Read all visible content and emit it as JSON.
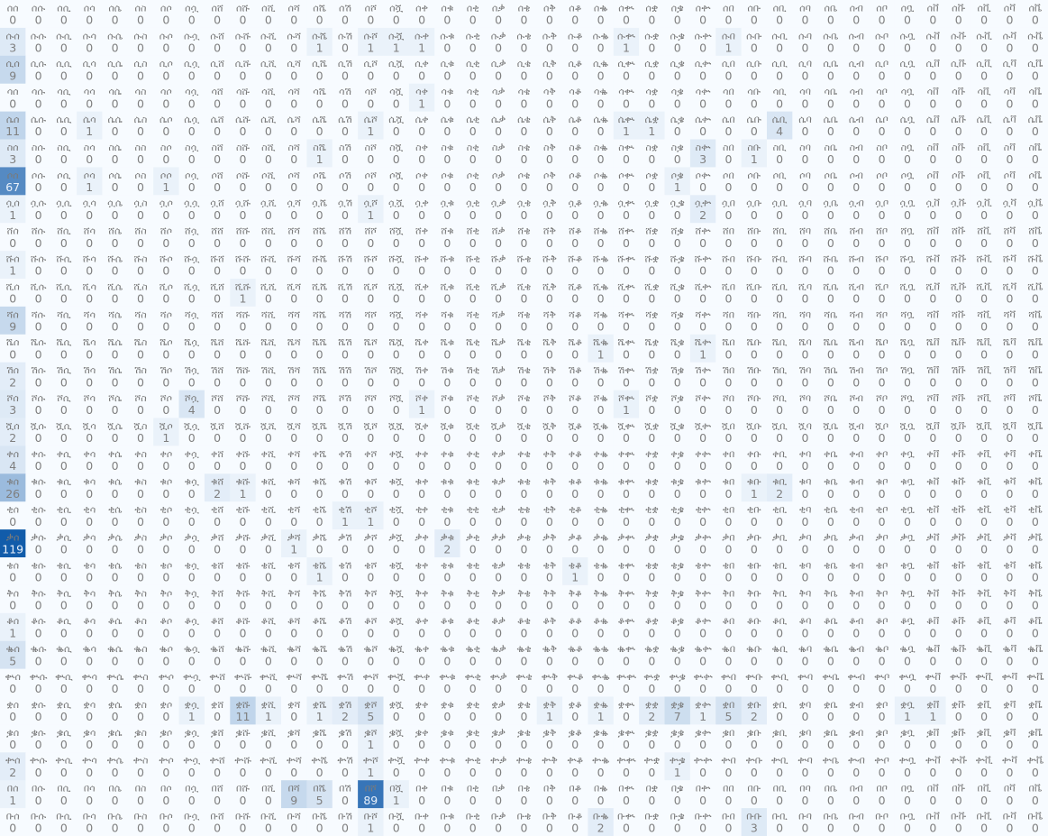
{
  "chart_data": {
    "type": "heatmap",
    "title": "",
    "xlabel": "",
    "ylabel": "",
    "colormap": "Blues",
    "value_range": [
      0,
      119
    ],
    "columns": [
      "ሰ",
      "ሱ",
      "ሲ",
      "ሳ",
      "ሴ",
      "ስ",
      "ሶ",
      "ሷ",
      "ሸ",
      "ሹ",
      "ሺ",
      "ሻ",
      "ሼ",
      "ሽ",
      "ሾ",
      "ሿ",
      "ቀ",
      "ቁ",
      "ቂ",
      "ቃ",
      "ቄ",
      "ቅ",
      "ቆ",
      "ቈ",
      "ቊ",
      "ቋ",
      "ቌ",
      "ቍ",
      "በ",
      "ቡ",
      "ቢ",
      "ባ",
      "ቤ",
      "ብ",
      "ቦ",
      "ቧ",
      "ቨ",
      "ቩ",
      "ቪ",
      "ቫ",
      "ቬ"
    ],
    "rows": [
      {
        "label": "ሰ",
        "values": [
          0,
          0,
          0,
          0,
          0,
          0,
          0,
          0,
          0,
          0,
          0,
          0,
          0,
          0,
          0,
          0,
          0,
          0,
          0,
          0,
          0,
          0,
          0,
          0,
          0,
          0,
          0,
          0,
          0,
          0,
          0,
          0,
          0,
          0,
          0,
          0,
          0,
          0,
          0,
          0,
          0
        ]
      },
      {
        "label": "ሱ",
        "values": [
          3,
          0,
          0,
          0,
          0,
          0,
          0,
          0,
          0,
          0,
          0,
          0,
          1,
          0,
          1,
          1,
          1,
          0,
          0,
          0,
          0,
          0,
          0,
          0,
          1,
          0,
          0,
          0,
          1,
          0,
          0,
          0,
          0,
          0,
          0,
          0,
          0,
          0,
          0,
          0,
          0
        ]
      },
      {
        "label": "ሲ",
        "values": [
          9,
          0,
          0,
          0,
          0,
          0,
          0,
          0,
          0,
          0,
          0,
          0,
          0,
          0,
          0,
          0,
          0,
          0,
          0,
          0,
          0,
          0,
          0,
          0,
          0,
          0,
          0,
          0,
          0,
          0,
          0,
          0,
          0,
          0,
          0,
          0,
          0,
          0,
          0,
          0,
          0
        ]
      },
      {
        "label": "ሳ",
        "values": [
          0,
          0,
          0,
          0,
          0,
          0,
          0,
          0,
          0,
          0,
          0,
          0,
          0,
          0,
          0,
          0,
          1,
          0,
          0,
          0,
          0,
          0,
          0,
          0,
          0,
          0,
          0,
          0,
          0,
          0,
          0,
          0,
          0,
          0,
          0,
          0,
          0,
          0,
          0,
          0,
          0
        ]
      },
      {
        "label": "ሴ",
        "values": [
          11,
          0,
          0,
          1,
          0,
          0,
          0,
          0,
          0,
          0,
          0,
          0,
          0,
          0,
          1,
          0,
          0,
          0,
          0,
          0,
          0,
          0,
          0,
          0,
          1,
          1,
          0,
          0,
          0,
          0,
          4,
          0,
          0,
          0,
          0,
          0,
          0,
          0,
          0,
          0,
          0
        ]
      },
      {
        "label": "ስ",
        "values": [
          3,
          0,
          0,
          0,
          0,
          0,
          0,
          0,
          0,
          0,
          0,
          0,
          1,
          0,
          0,
          0,
          0,
          0,
          0,
          0,
          0,
          0,
          0,
          0,
          0,
          0,
          0,
          3,
          0,
          1,
          0,
          0,
          0,
          0,
          0,
          0,
          0,
          0,
          0,
          0,
          0
        ]
      },
      {
        "label": "ሶ",
        "values": [
          67,
          0,
          0,
          1,
          0,
          0,
          1,
          0,
          0,
          0,
          0,
          0,
          0,
          0,
          0,
          0,
          0,
          0,
          0,
          0,
          0,
          0,
          0,
          0,
          0,
          0,
          1,
          0,
          0,
          0,
          0,
          0,
          0,
          0,
          0,
          0,
          0,
          0,
          0,
          0,
          0
        ]
      },
      {
        "label": "ሷ",
        "values": [
          1,
          0,
          0,
          0,
          0,
          0,
          0,
          0,
          0,
          0,
          0,
          0,
          0,
          0,
          1,
          0,
          0,
          0,
          0,
          0,
          0,
          0,
          0,
          0,
          0,
          0,
          0,
          2,
          0,
          0,
          0,
          0,
          0,
          0,
          0,
          0,
          0,
          0,
          0,
          0,
          0
        ]
      },
      {
        "label": "ሸ",
        "values": [
          0,
          0,
          0,
          0,
          0,
          0,
          0,
          0,
          0,
          0,
          0,
          0,
          0,
          0,
          0,
          0,
          0,
          0,
          0,
          0,
          0,
          0,
          0,
          0,
          0,
          0,
          0,
          0,
          0,
          0,
          0,
          0,
          0,
          0,
          0,
          0,
          0,
          0,
          0,
          0,
          0
        ]
      },
      {
        "label": "ሹ",
        "values": [
          1,
          0,
          0,
          0,
          0,
          0,
          0,
          0,
          0,
          0,
          0,
          0,
          0,
          0,
          0,
          0,
          0,
          0,
          0,
          0,
          0,
          0,
          0,
          0,
          0,
          0,
          0,
          0,
          0,
          0,
          0,
          0,
          0,
          0,
          0,
          0,
          0,
          0,
          0,
          0,
          0
        ]
      },
      {
        "label": "ሺ",
        "values": [
          0,
          0,
          0,
          0,
          0,
          0,
          0,
          0,
          0,
          1,
          0,
          0,
          0,
          0,
          0,
          0,
          0,
          0,
          0,
          0,
          0,
          0,
          0,
          0,
          0,
          0,
          0,
          0,
          0,
          0,
          0,
          0,
          0,
          0,
          0,
          0,
          0,
          0,
          0,
          0,
          0
        ]
      },
      {
        "label": "ሻ",
        "values": [
          9,
          0,
          0,
          0,
          0,
          0,
          0,
          0,
          0,
          0,
          0,
          0,
          0,
          0,
          0,
          0,
          0,
          0,
          0,
          0,
          0,
          0,
          0,
          0,
          0,
          0,
          0,
          0,
          0,
          0,
          0,
          0,
          0,
          0,
          0,
          0,
          0,
          0,
          0,
          0,
          0
        ]
      },
      {
        "label": "ሼ",
        "values": [
          0,
          0,
          0,
          0,
          0,
          0,
          0,
          0,
          0,
          0,
          0,
          0,
          0,
          0,
          0,
          0,
          0,
          0,
          0,
          0,
          0,
          0,
          0,
          1,
          0,
          0,
          0,
          1,
          0,
          0,
          0,
          0,
          0,
          0,
          0,
          0,
          0,
          0,
          0,
          0,
          0
        ]
      },
      {
        "label": "ሽ",
        "values": [
          2,
          0,
          0,
          0,
          0,
          0,
          0,
          0,
          0,
          0,
          0,
          0,
          0,
          0,
          0,
          0,
          0,
          0,
          0,
          0,
          0,
          0,
          0,
          0,
          0,
          0,
          0,
          0,
          0,
          0,
          0,
          0,
          0,
          0,
          0,
          0,
          0,
          0,
          0,
          0,
          0
        ]
      },
      {
        "label": "ሾ",
        "values": [
          3,
          0,
          0,
          0,
          0,
          0,
          0,
          4,
          0,
          0,
          0,
          0,
          0,
          0,
          0,
          0,
          1,
          0,
          0,
          0,
          0,
          0,
          0,
          0,
          1,
          0,
          0,
          0,
          0,
          0,
          0,
          0,
          0,
          0,
          0,
          0,
          0,
          0,
          0,
          0,
          0
        ]
      },
      {
        "label": "ሿ",
        "values": [
          2,
          0,
          0,
          0,
          0,
          0,
          1,
          0,
          0,
          0,
          0,
          0,
          0,
          0,
          0,
          0,
          0,
          0,
          0,
          0,
          0,
          0,
          0,
          0,
          0,
          0,
          0,
          0,
          0,
          0,
          0,
          0,
          0,
          0,
          0,
          0,
          0,
          0,
          0,
          0,
          0
        ]
      },
      {
        "label": "ቀ",
        "values": [
          4,
          0,
          0,
          0,
          0,
          0,
          0,
          0,
          0,
          0,
          0,
          0,
          0,
          0,
          0,
          0,
          0,
          0,
          0,
          0,
          0,
          0,
          0,
          0,
          0,
          0,
          0,
          0,
          0,
          0,
          0,
          0,
          0,
          0,
          0,
          0,
          0,
          0,
          0,
          0,
          0
        ]
      },
      {
        "label": "ቁ",
        "values": [
          26,
          0,
          0,
          0,
          0,
          0,
          0,
          0,
          2,
          1,
          0,
          0,
          0,
          0,
          0,
          0,
          0,
          0,
          0,
          0,
          0,
          0,
          0,
          0,
          0,
          0,
          0,
          0,
          0,
          1,
          2,
          0,
          0,
          0,
          0,
          0,
          0,
          0,
          0,
          0,
          0
        ]
      },
      {
        "label": "ቂ",
        "values": [
          0,
          0,
          0,
          0,
          0,
          0,
          0,
          0,
          0,
          0,
          0,
          0,
          0,
          1,
          1,
          0,
          0,
          0,
          0,
          0,
          0,
          0,
          0,
          0,
          0,
          0,
          0,
          0,
          0,
          0,
          0,
          0,
          0,
          0,
          0,
          0,
          0,
          0,
          0,
          0,
          0
        ]
      },
      {
        "label": "ቃ",
        "values": [
          119,
          0,
          0,
          0,
          0,
          0,
          0,
          0,
          0,
          0,
          0,
          1,
          0,
          0,
          0,
          0,
          0,
          2,
          0,
          0,
          0,
          0,
          0,
          0,
          0,
          0,
          0,
          0,
          0,
          0,
          0,
          0,
          0,
          0,
          0,
          0,
          0,
          0,
          0,
          0,
          0
        ]
      },
      {
        "label": "ቄ",
        "values": [
          0,
          0,
          0,
          0,
          0,
          0,
          0,
          0,
          0,
          0,
          0,
          0,
          1,
          0,
          0,
          0,
          0,
          0,
          0,
          0,
          0,
          0,
          1,
          0,
          0,
          0,
          0,
          0,
          0,
          0,
          0,
          0,
          0,
          0,
          0,
          0,
          0,
          0,
          0,
          0,
          0
        ]
      },
      {
        "label": "ቅ",
        "values": [
          0,
          0,
          0,
          0,
          0,
          0,
          0,
          0,
          0,
          0,
          0,
          0,
          0,
          0,
          0,
          0,
          0,
          0,
          0,
          0,
          0,
          0,
          0,
          0,
          0,
          0,
          0,
          0,
          0,
          0,
          0,
          0,
          0,
          0,
          0,
          0,
          0,
          0,
          0,
          0,
          0
        ]
      },
      {
        "label": "ቆ",
        "values": [
          1,
          0,
          0,
          0,
          0,
          0,
          0,
          0,
          0,
          0,
          0,
          0,
          0,
          0,
          0,
          0,
          0,
          0,
          0,
          0,
          0,
          0,
          0,
          0,
          0,
          0,
          0,
          0,
          0,
          0,
          0,
          0,
          0,
          0,
          0,
          0,
          0,
          0,
          0,
          0,
          0
        ]
      },
      {
        "label": "ቈ",
        "values": [
          5,
          0,
          0,
          0,
          0,
          0,
          0,
          0,
          0,
          0,
          0,
          0,
          0,
          0,
          0,
          0,
          0,
          0,
          0,
          0,
          0,
          0,
          0,
          0,
          0,
          0,
          0,
          0,
          0,
          0,
          0,
          0,
          0,
          0,
          0,
          0,
          0,
          0,
          0,
          0,
          0
        ]
      },
      {
        "label": "ቊ",
        "values": [
          0,
          0,
          0,
          0,
          0,
          0,
          0,
          0,
          0,
          0,
          0,
          0,
          0,
          0,
          0,
          0,
          0,
          0,
          0,
          0,
          0,
          0,
          0,
          0,
          0,
          0,
          0,
          0,
          0,
          0,
          0,
          0,
          0,
          0,
          0,
          0,
          0,
          0,
          0,
          0,
          0
        ]
      },
      {
        "label": "ቋ",
        "values": [
          0,
          0,
          0,
          0,
          0,
          0,
          0,
          1,
          0,
          11,
          1,
          0,
          1,
          2,
          5,
          0,
          0,
          0,
          0,
          0,
          0,
          1,
          0,
          1,
          0,
          2,
          7,
          1,
          5,
          2,
          0,
          0,
          0,
          0,
          0,
          1,
          1,
          0,
          0,
          0,
          0
        ]
      },
      {
        "label": "ቌ",
        "values": [
          0,
          0,
          0,
          0,
          0,
          0,
          0,
          0,
          0,
          0,
          0,
          0,
          0,
          0,
          1,
          0,
          0,
          0,
          0,
          0,
          0,
          0,
          0,
          0,
          0,
          0,
          0,
          0,
          0,
          0,
          0,
          0,
          0,
          0,
          0,
          0,
          0,
          0,
          0,
          0,
          0
        ]
      },
      {
        "label": "ቍ",
        "values": [
          2,
          0,
          0,
          0,
          0,
          0,
          0,
          0,
          0,
          0,
          0,
          0,
          0,
          0,
          1,
          0,
          0,
          0,
          0,
          0,
          0,
          0,
          0,
          0,
          0,
          0,
          1,
          0,
          0,
          0,
          0,
          0,
          0,
          0,
          0,
          0,
          0,
          0,
          0,
          0,
          0
        ]
      },
      {
        "label": "በ",
        "values": [
          1,
          0,
          0,
          0,
          0,
          0,
          0,
          0,
          0,
          0,
          0,
          9,
          5,
          0,
          89,
          1,
          0,
          0,
          0,
          0,
          0,
          0,
          0,
          0,
          0,
          0,
          0,
          0,
          0,
          0,
          0,
          0,
          0,
          0,
          0,
          0,
          0,
          0,
          0,
          0,
          0
        ]
      },
      {
        "label": "ቡ",
        "values": [
          0,
          0,
          0,
          0,
          0,
          0,
          0,
          0,
          0,
          0,
          0,
          0,
          0,
          0,
          1,
          0,
          0,
          0,
          0,
          0,
          0,
          0,
          0,
          2,
          0,
          0,
          0,
          0,
          0,
          3,
          0,
          0,
          0,
          0,
          0,
          0,
          0,
          0,
          0,
          0,
          0
        ]
      }
    ]
  }
}
